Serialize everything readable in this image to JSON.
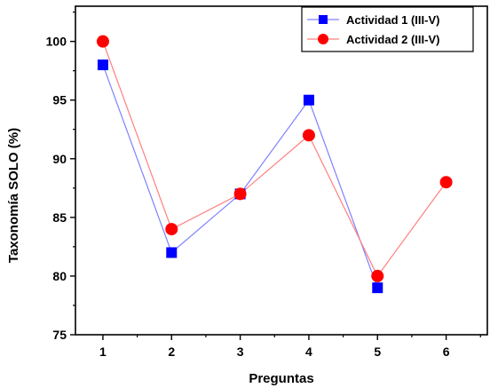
{
  "chart_data": {
    "type": "line",
    "title": "",
    "xlabel": "Preguntas",
    "ylabel": "Taxonomía SOLO (%)",
    "xlim": [
      0.6,
      6.6
    ],
    "ylim": [
      75,
      103
    ],
    "xticks": [
      "1",
      "2",
      "3",
      "4",
      "5",
      "6"
    ],
    "yticks": [
      "75",
      "80",
      "85",
      "90",
      "95",
      "100"
    ],
    "grid": false,
    "legend_position": "top-right",
    "series": [
      {
        "name": "Actividad 1 (III-V)",
        "marker": "square",
        "color": "#0000FF",
        "line_color": "#8080FF",
        "x": [
          1,
          2,
          3,
          4,
          5
        ],
        "y": [
          98,
          82,
          87,
          95,
          79
        ]
      },
      {
        "name": "Actividad 2 (III-V)",
        "marker": "circle",
        "color": "#FF0000",
        "line_color": "#FF8080",
        "x": [
          1,
          2,
          3,
          4,
          5,
          6
        ],
        "y": [
          100,
          84,
          87,
          92,
          80,
          88
        ]
      }
    ]
  }
}
